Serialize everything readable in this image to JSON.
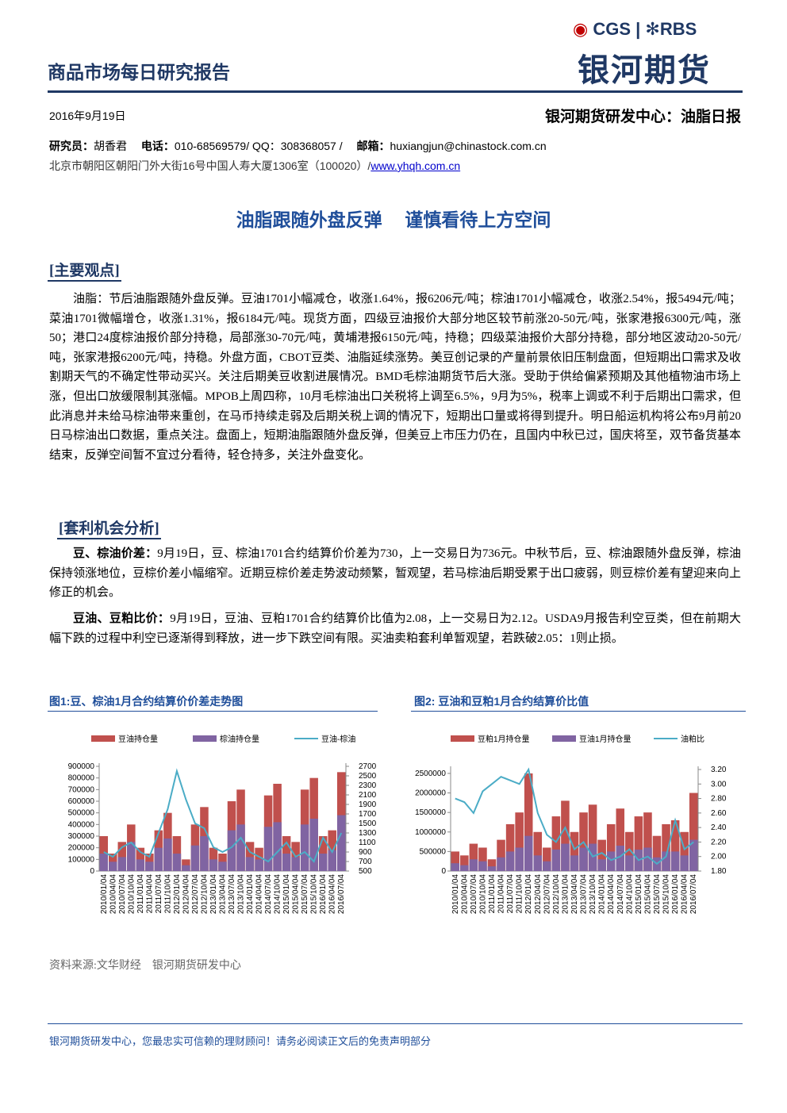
{
  "header": {
    "title": "商品市场每日研究报告",
    "logo_brand": "CGS",
    "logo_partner": "RBS",
    "logo_name": "银河期货",
    "date": "2016年9月19日",
    "center": "银河期货研发中心：油脂日报"
  },
  "contact": {
    "researcher_label": "研究员：",
    "researcher": "胡香君",
    "phone_label": "电话：",
    "phone": "010-68569579/ QQ：308368057 /",
    "email_label": "邮箱：",
    "email": "huxiangjun@chinastock.com.cn",
    "address": "北京市朝阳区朝阳门外大街16号中国人寿大厦1306室（100020）/",
    "website": "www.yhqh.com.cn"
  },
  "headline": "油脂跟随外盘反弹　 谨慎看待上方空间",
  "sections": [
    {
      "heading": "[主要观点]",
      "paragraphs": [
        {
          "lead": "",
          "text": "油脂：节后油脂跟随外盘反弹。豆油1701小幅减仓，收涨1.64%，报6206元/吨；棕油1701小幅减仓，收涨2.54%，报5494元/吨；菜油1701微幅增仓，收涨1.31%，报6184元/吨。现货方面，四级豆油报价大部分地区较节前涨20-50元/吨，张家港报6300元/吨，涨50；港口24度棕油报价部分持稳，局部涨30-70元/吨，黄埔港报6150元/吨，持稳；四级菜油报价大部分持稳，部分地区波动20-50元/吨，张家港报6200元/吨，持稳。外盘方面，CBOT豆类、油脂延续涨势。美豆创记录的产量前景依旧压制盘面，但短期出口需求及收割期天气的不确定性带动买兴。关注后期美豆收割进展情况。BMD毛棕油期货节后大涨。受助于供给偏紧预期及其他植物油市场上涨，但出口放缓限制其涨幅。MPOB上周四称，10月毛棕油出口关税将上调至6.5%，9月为5%，税率上调或不利于后期出口需求，但此消息并未给马棕油带来重创，在马币持续走弱及后期关税上调的情况下，短期出口量或将得到提升。明日船运机构将公布9月前20日马棕油出口数据，重点关注。盘面上，短期油脂跟随外盘反弹，但美豆上市压力仍在，且国内中秋已过，国庆将至，双节备货基本结束，反弹空间暂不宜过分看待，轻仓持多，关注外盘变化。"
        }
      ]
    },
    {
      "heading": "[套利机会分析]",
      "paragraphs": [
        {
          "lead": "豆、棕油价差：",
          "text": "9月19日，豆、棕油1701合约结算价价差为730，上一交易日为736元。中秋节后，豆、棕油跟随外盘反弹，棕油保持领涨地位，豆棕价差小幅缩窄。近期豆棕价差走势波动频繁，暂观望，若马棕油后期受累于出口疲弱，则豆棕价差有望迎来向上修正的机会。"
        },
        {
          "lead": "豆油、豆粕比价：",
          "text": "9月19日，豆油、豆粕1701合约结算价比值为2.08，上一交易日为2.12。USDA9月报告利空豆类，但在前期大幅下跌的过程中利空已逐渐得到释放，进一步下跌空间有限。买油卖粕套利单暂观望，若跌破2.05：1则止损。"
        }
      ]
    }
  ],
  "source": "资料来源:文华财经　银河期货研发中心",
  "footer": "银河期货研发中心，您最忠实可信赖的理财顾问！请务必阅读正文后的免责声明部分",
  "chart_data": [
    {
      "type": "bar-line",
      "title": "图1:豆、棕油1月合约结算价价差走势图",
      "categories": [
        "2010/01/04",
        "2010/04/04",
        "2010/07/04",
        "2010/10/04",
        "2011/01/04",
        "2011/04/04",
        "2011/07/04",
        "2011/10/04",
        "2012/01/04",
        "2012/04/04",
        "2012/07/04",
        "2012/10/04",
        "2013/01/04",
        "2013/04/04",
        "2013/07/04",
        "2013/10/04",
        "2014/01/04",
        "2014/04/04",
        "2014/07/04",
        "2014/10/04",
        "2015/01/04",
        "2015/04/04",
        "2015/07/04",
        "2015/10/04",
        "2016/01/04",
        "2016/04/04",
        "2016/07/04"
      ],
      "series": [
        {
          "name": "豆油持仓量",
          "color": "#c0504d",
          "values": [
            300000,
            150000,
            250000,
            400000,
            200000,
            150000,
            350000,
            500000,
            300000,
            100000,
            400000,
            550000,
            200000,
            150000,
            600000,
            700000,
            250000,
            200000,
            650000,
            750000,
            300000,
            250000,
            700000,
            800000,
            300000,
            350000,
            850000
          ]
        },
        {
          "name": "棕油持仓量",
          "color": "#8064a2",
          "values": [
            150000,
            80000,
            120000,
            250000,
            100000,
            80000,
            200000,
            280000,
            150000,
            50000,
            220000,
            300000,
            100000,
            80000,
            350000,
            400000,
            120000,
            100000,
            380000,
            420000,
            150000,
            120000,
            400000,
            450000,
            150000,
            180000,
            480000
          ]
        },
        {
          "name": "豆油-棕油",
          "color": "#4bacc6",
          "axis": "y2",
          "values": [
            900,
            800,
            1000,
            1100,
            900,
            800,
            1300,
            1800,
            2600,
            2000,
            1500,
            1400,
            1000,
            900,
            1000,
            1200,
            900,
            800,
            700,
            900,
            1100,
            800,
            900,
            700,
            1200,
            900,
            1300
          ]
        }
      ],
      "ylim": [
        0,
        900000
      ],
      "yticks": [
        0,
        100000,
        200000,
        300000,
        400000,
        500000,
        600000,
        700000,
        800000,
        900000
      ],
      "y2lim": [
        500,
        2700
      ],
      "y2ticks": [
        500,
        700,
        900,
        1100,
        1300,
        1500,
        1700,
        1900,
        2100,
        2300,
        2500,
        2700
      ]
    },
    {
      "type": "bar-line",
      "title": "图2: 豆油和豆粕1月合约结算价比值",
      "categories": [
        "2010/01/04",
        "2010/04/04",
        "2010/07/04",
        "2010/10/04",
        "2011/01/04",
        "2011/04/04",
        "2011/07/04",
        "2011/10/04",
        "2012/01/04",
        "2012/04/04",
        "2012/07/04",
        "2012/10/04",
        "2013/01/04",
        "2013/04/04",
        "2013/07/04",
        "2013/10/04",
        "2014/01/04",
        "2014/04/04",
        "2014/07/04",
        "2014/10/04",
        "2015/01/04",
        "2015/04/04",
        "2015/07/04",
        "2015/10/04",
        "2016/01/04",
        "2016/04/04",
        "2016/07/04"
      ],
      "series": [
        {
          "name": "豆粕1月持仓量",
          "color": "#c0504d",
          "values": [
            500000,
            400000,
            700000,
            600000,
            300000,
            800000,
            1200000,
            1500000,
            2500000,
            1000000,
            600000,
            1400000,
            1800000,
            1000000,
            1500000,
            1700000,
            800000,
            1200000,
            1600000,
            1000000,
            1400000,
            1500000,
            900000,
            1200000,
            1300000,
            1000000,
            2000000
          ]
        },
        {
          "name": "豆油1月持仓量",
          "color": "#8064a2",
          "values": [
            200000,
            150000,
            300000,
            250000,
            120000,
            350000,
            500000,
            600000,
            900000,
            400000,
            250000,
            550000,
            700000,
            400000,
            600000,
            700000,
            300000,
            500000,
            650000,
            400000,
            550000,
            600000,
            350000,
            500000,
            500000,
            400000,
            800000
          ]
        },
        {
          "name": "油粕比",
          "color": "#4bacc6",
          "axis": "y2",
          "values": [
            2.8,
            2.75,
            2.6,
            2.9,
            3.0,
            3.1,
            3.05,
            3.0,
            3.2,
            2.6,
            2.3,
            2.2,
            2.4,
            2.1,
            2.2,
            2.0,
            2.05,
            1.95,
            2.0,
            2.1,
            1.95,
            2.0,
            1.9,
            2.0,
            2.5,
            2.1,
            2.2
          ]
        }
      ],
      "ylim": [
        0,
        2600000
      ],
      "yticks": [
        0,
        500000,
        1000000,
        1500000,
        2000000,
        2500000
      ],
      "y2lim": [
        1.8,
        3.2
      ],
      "y2ticks": [
        {
          "value": 1.8,
          "label": "1.80"
        },
        {
          "value": 2.0,
          "label": "2.00"
        },
        {
          "value": 2.2,
          "label": "2.20"
        },
        {
          "value": 2.4,
          "label": "2.40"
        },
        {
          "value": 2.6,
          "label": "2.60"
        },
        {
          "value": 2.8,
          "label": "2.80"
        },
        {
          "value": 3.0,
          "label": "3.00"
        },
        {
          "value": 3.2,
          "label": "3.20"
        }
      ]
    }
  ]
}
